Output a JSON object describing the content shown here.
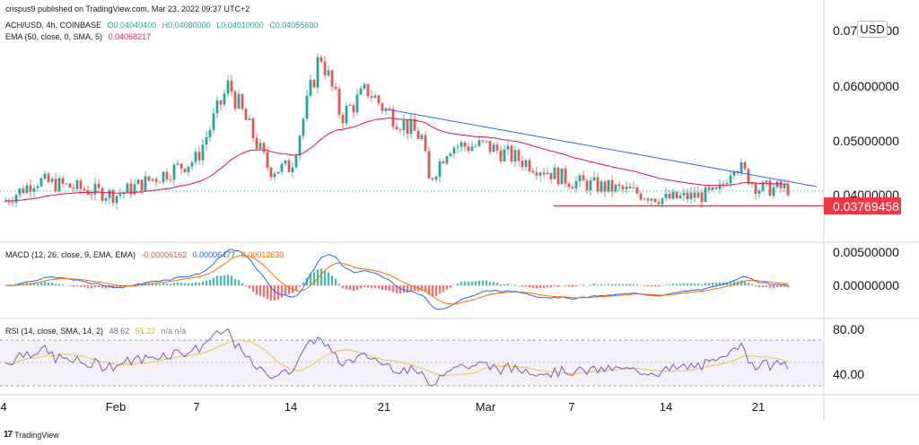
{
  "header": {
    "publisher": "crispus9 published on TradingView.com, Mar 23, 2022 09:37 UTC+2",
    "symbol_line": "ACH/USD, 4h, COINBASE",
    "ohlc": [
      "O0.04040400",
      "H0.04080000",
      "L0.04010000",
      "C0.04055600"
    ],
    "ema_label": "EMA (50, close, 0, SMA, 5)",
    "ema_value": "0.04068217"
  },
  "currency_button": "USD",
  "macd_header": {
    "label": "MACD (12, 26, close, 9, EMA, EMA)",
    "hist": "-0.00006162",
    "macd": "0.00006477",
    "signal": "0.00012639"
  },
  "rsi_header": {
    "label": "RSI (14, close, SMA, 14, 2)",
    "rsi": "48.62",
    "rsi_ma": "51.22",
    "bands": "n/a n/a"
  },
  "price_axis": [
    "0.07000000",
    "0.06000000",
    "0.05000000",
    "0.04000000"
  ],
  "price_badge": "0.03769458",
  "macd_axis": [
    "0.00500000",
    "0.00000000"
  ],
  "rsi_axis": [
    "80.00",
    "40.00"
  ],
  "x_axis": [
    "4",
    "Feb",
    "7",
    "14",
    "21",
    "Mar",
    "7",
    "14",
    "21"
  ],
  "footer_brand": "TradingView",
  "colors": {
    "up": "#26a69a",
    "down": "#ef5350",
    "ema": "#e91e63",
    "trendline": "#2962ff",
    "support": "#f23645",
    "macd": "#2962ff",
    "signal": "#ff6d00",
    "rsi": "#7e57c2",
    "rsi_ma": "#f5c542"
  },
  "chart_data": {
    "type": "candlestick",
    "x": [
      "4",
      "Feb",
      "7",
      "14",
      "21",
      "Mar",
      "7",
      "14",
      "21"
    ],
    "price": {
      "ylim": [
        0.033,
        0.072
      ],
      "key_points": [
        {
          "x": "4",
          "close": 0.038
        },
        {
          "x": "Feb",
          "close": 0.0392
        },
        {
          "x": "7",
          "close": 0.046
        },
        {
          "x": "14",
          "close": 0.044
        },
        {
          "x": "14",
          "high": 0.068
        },
        {
          "x": "21",
          "close": 0.0555
        },
        {
          "x": "Mar",
          "close": 0.0485
        },
        {
          "x": "7",
          "close": 0.0418
        },
        {
          "x": "14",
          "close": 0.0385
        },
        {
          "x": "21",
          "close": 0.0405
        }
      ],
      "last_close": 0.040556,
      "ema50_last": 0.04068217,
      "support_level": 0.03769458,
      "descending_trendline": [
        {
          "x": "21",
          "y": 0.0555
        },
        {
          "x": "21",
          "y": 0.0416
        }
      ]
    },
    "macd": {
      "last_hist": -6.162e-05,
      "last_macd": 6.477e-05,
      "last_signal": 0.00012639
    },
    "rsi": {
      "last": 48.62,
      "last_ma": 51.22,
      "upper_band": 70,
      "lower_band": 30
    }
  }
}
